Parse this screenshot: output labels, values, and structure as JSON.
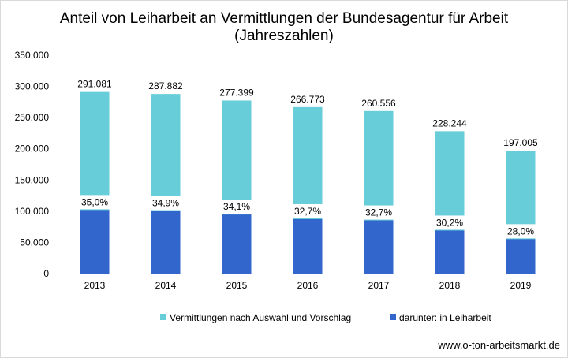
{
  "chart_data": {
    "type": "bar",
    "stacked": "overlay",
    "title_lines": [
      "Anteil von Leiharbeit an Vermittlungen der Bundesagentur für Arbeit",
      "(Jahreszahlen)"
    ],
    "categories": [
      "2013",
      "2014",
      "2015",
      "2016",
      "2017",
      "2018",
      "2019"
    ],
    "series": [
      {
        "name": "Vermittlungen nach Auswahl und Vorschlag",
        "color": "#66cdd9",
        "values": [
          291081,
          287882,
          277399,
          266773,
          260556,
          228244,
          197005
        ],
        "labels": [
          "291.081",
          "287.882",
          "277.399",
          "266.773",
          "260.556",
          "228.244",
          "197.005"
        ]
      },
      {
        "name": "darunter: in Leiharbeit",
        "color": "#3366cc",
        "values": [
          101878,
          100471,
          94593,
          87235,
          85202,
          68930,
          55161
        ],
        "labels": [
          "35,0%",
          "34,9%",
          "34,1%",
          "32,7%",
          "32,7%",
          "30,2%",
          "28,0%"
        ]
      }
    ],
    "ylim": [
      0,
      350000
    ],
    "yticks": [
      0,
      50000,
      100000,
      150000,
      200000,
      250000,
      300000,
      350000
    ],
    "ytick_labels": [
      "0",
      "50.000",
      "100.000",
      "150.000",
      "200.000",
      "250.000",
      "300.000",
      "350.000"
    ],
    "grid": false,
    "legend_position": "bottom"
  },
  "source": "www.o-ton-arbeitsmarkt.de"
}
